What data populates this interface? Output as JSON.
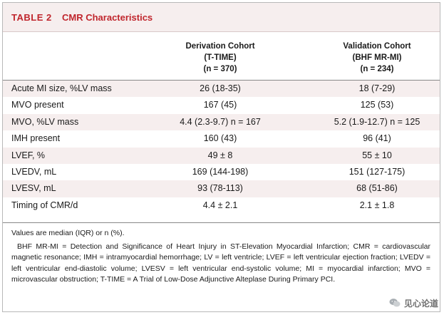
{
  "table": {
    "number": "TABLE 2",
    "title": "CMR Characteristics",
    "columns": [
      {
        "line1": "Derivation Cohort",
        "line2": "(T-TIME)",
        "line3": "(n = 370)"
      },
      {
        "line1": "Validation Cohort",
        "line2": "(BHF MR-MI)",
        "line3": "(n = 234)"
      }
    ],
    "rows": [
      {
        "label": "Acute MI size, %LV mass",
        "derivation": "26 (18-35)",
        "validation": "18 (7-29)"
      },
      {
        "label": "MVO present",
        "derivation": "167 (45)",
        "validation": "125 (53)"
      },
      {
        "label": "MVO, %LV mass",
        "derivation": "4.4 (2.3-9.7) n = 167",
        "validation": "5.2 (1.9-12.7) n = 125"
      },
      {
        "label": "IMH present",
        "derivation": "160 (43)",
        "validation": "96 (41)"
      },
      {
        "label": "LVEF, %",
        "derivation": "49 ± 8",
        "validation": "55 ± 10"
      },
      {
        "label": "LVEDV, mL",
        "derivation": "169 (144-198)",
        "validation": "151 (127-175)"
      },
      {
        "label": "LVESV, mL",
        "derivation": "93 (78-113)",
        "validation": "68 (51-86)"
      },
      {
        "label": "Timing of CMR/d",
        "derivation": "4.4 ± 2.1",
        "validation": "2.1 ± 1.8"
      }
    ],
    "footnote_values": "Values are median (IQR) or n (%).",
    "footnote_abbrev": "BHF MR-MI = Detection and Significance of Heart Injury in ST-Elevation Myocardial Infarction; CMR = cardiovascular magnetic resonance; IMH = intramyocardial hemorrhage; LV = left ventricle; LVEF = left ventricular ejection fraction; LVEDV = left ventricular end-diastolic volume; LVESV = left ventricular end-systolic volume; MI = myocardial infarction; MVO = microvascular obstruction; T-TIME = A Trial of Low-Dose Adjunctive Alteplase During Primary PCI."
  },
  "watermark": {
    "text": "见心论道",
    "icon": "wechat-icon"
  },
  "colors": {
    "accent": "#c0262d",
    "shade": "#f6eeee"
  }
}
